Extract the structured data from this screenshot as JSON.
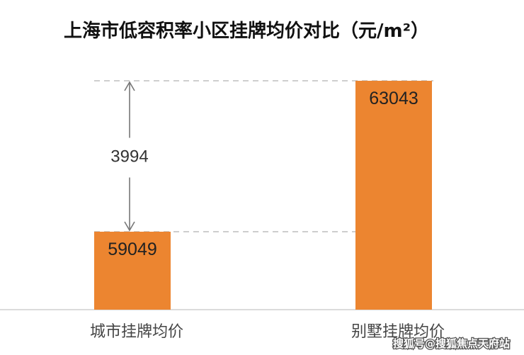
{
  "chart_data": {
    "type": "bar",
    "title": "上海市低容积率小区挂牌均价对比（元/m²）",
    "categories": [
      "城市挂牌均价",
      "别墅挂牌均价"
    ],
    "values": [
      59049,
      63043
    ],
    "value_labels": [
      "59049",
      "63043"
    ],
    "difference": {
      "value": 3994,
      "label": "3994"
    },
    "colors": {
      "bar": "#EC8530",
      "guide_line": "#bdbdbd",
      "arrow": "#777777",
      "axis": "#cfcfcf"
    },
    "grid": false,
    "legend": "none"
  },
  "watermark": "搜狐号@搜狐焦点天府站"
}
